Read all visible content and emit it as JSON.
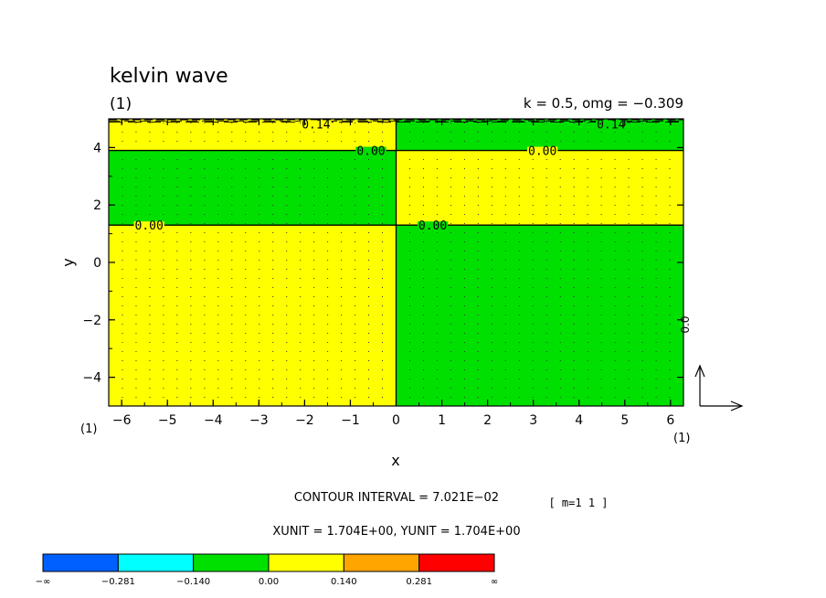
{
  "chart_data": {
    "type": "heatmap",
    "title": "kelvin wave",
    "panel_label": "(1)",
    "params_label": "k = 0.5, omg = −0.309",
    "xlabel": "x",
    "ylabel": "y",
    "xlim": [
      -6.283,
      6.283
    ],
    "ylim": [
      -5,
      5
    ],
    "x_ticks": [
      -6,
      -5,
      -4,
      -3,
      -2,
      -1,
      0,
      1,
      2,
      3,
      4,
      5,
      6
    ],
    "y_ticks": [
      -4,
      -2,
      0,
      2,
      4
    ],
    "x_tick_labels": [
      "−6",
      "−5",
      "−4",
      "−3",
      "−2",
      "−1",
      "0",
      "1",
      "2",
      "3",
      "4",
      "5",
      "6"
    ],
    "y_tick_labels": [
      "−4",
      "−2",
      "0",
      "2",
      "4"
    ],
    "x_axis_mark_left": "(1)",
    "x_axis_mark_right": "(1)",
    "regions": [
      {
        "x": [
          -6.283,
          0
        ],
        "y": [
          -5,
          1.3
        ],
        "level": "0.00 to 0.140",
        "color": "#ffff00"
      },
      {
        "x": [
          -6.283,
          0
        ],
        "y": [
          1.3,
          3.9
        ],
        "level": "-0.140 to 0.00",
        "color": "#00e000"
      },
      {
        "x": [
          -6.283,
          0
        ],
        "y": [
          3.9,
          5
        ],
        "level": "0.00 to 0.140",
        "color": "#ffff00"
      },
      {
        "x": [
          0,
          6.283
        ],
        "y": [
          -5,
          1.3
        ],
        "level": "-0.140 to 0.00",
        "color": "#00e000"
      },
      {
        "x": [
          0,
          6.283
        ],
        "y": [
          1.3,
          3.9
        ],
        "level": "0.00 to 0.140",
        "color": "#ffff00"
      },
      {
        "x": [
          0,
          6.283
        ],
        "y": [
          3.9,
          5
        ],
        "level": "-0.140 to 0.00",
        "color": "#00e000"
      }
    ],
    "contours": [
      {
        "value": 0.0,
        "y": 1.3
      },
      {
        "value": 0.0,
        "y": 3.9
      },
      {
        "value": 0.0,
        "x": 0
      }
    ],
    "contour_labels": [
      {
        "text": "0.00",
        "x": -5.4,
        "y": 1.3
      },
      {
        "text": "0.00",
        "x": 0.8,
        "y": 1.3
      },
      {
        "text": "0.00",
        "x": -0.55,
        "y": 3.9
      },
      {
        "text": "0.00",
        "x": 3.2,
        "y": 3.9
      },
      {
        "text": "0.14",
        "x": -1.75,
        "y": 4.83
      },
      {
        "text": "0.14",
        "x": 4.7,
        "y": 4.83
      }
    ],
    "vector_ref_label": "0.0",
    "contour_interval": "CONTOUR INTERVAL = 7.021E−02",
    "mode_label": "[ m=1 1 ]",
    "units_label": "XUNIT = 1.704E+00, YUNIT = 1.704E+00",
    "colorbar": {
      "colors": [
        "#0060ff",
        "#00ffff",
        "#00e000",
        "#ffff00",
        "#ffa500",
        "#ff0000"
      ],
      "labels": [
        "−∞",
        "−0.281",
        "−0.140",
        "0.00",
        "0.140",
        "0.281",
        "∞"
      ]
    }
  }
}
